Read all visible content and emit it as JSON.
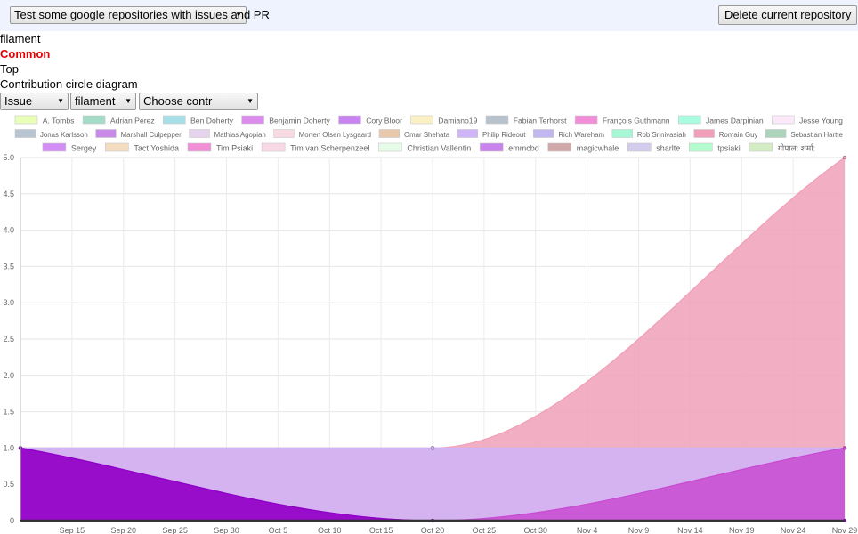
{
  "header": {
    "repo_select": "Test some google repositories with issues and PR",
    "delete_button": "Delete current repository"
  },
  "info": {
    "repo_name": "filament",
    "mode": "Common",
    "section": "Top",
    "diagram_title": "Contribution circle diagram"
  },
  "filters": {
    "type": "Issue",
    "repo": "filament",
    "contributor": "Choose contr"
  },
  "chart_data": {
    "type": "area",
    "x": [
      "Sep 10",
      "Sep 15",
      "Sep 20",
      "Sep 25",
      "Sep 30",
      "Oct 5",
      "Oct 10",
      "Oct 15",
      "Oct 20",
      "Oct 25",
      "Oct 30",
      "Nov 4",
      "Nov 9",
      "Nov 14",
      "Nov 19",
      "Nov 24",
      "Nov 29"
    ],
    "x_tick_labels": [
      "Sep 15",
      "Sep 20",
      "Sep 25",
      "Sep 30",
      "Oct 5",
      "Oct 10",
      "Oct 15",
      "Oct 20",
      "Oct 25",
      "Oct 30",
      "Nov 4",
      "Nov 9",
      "Nov 14",
      "Nov 19",
      "Nov 24",
      "Nov 29"
    ],
    "ylim": [
      0,
      5
    ],
    "y_ticks": [
      "0",
      "0.5",
      "1.0",
      "1.5",
      "2.0",
      "2.5",
      "3.0",
      "3.5",
      "4.0",
      "4.5",
      "5.0"
    ],
    "grid": true,
    "legend_position": "top",
    "legend": [
      {
        "name": "A. Tombs",
        "color": "#e9ffb8"
      },
      {
        "name": "Adrian Perez",
        "color": "#a4dcc7"
      },
      {
        "name": "Ben Doherty",
        "color": "#a8dfe6"
      },
      {
        "name": "Benjamin Doherty",
        "color": "#dc8cec"
      },
      {
        "name": "Cory Bloor",
        "color": "#c983f1"
      },
      {
        "name": "Damiano19",
        "color": "#fbf0c4"
      },
      {
        "name": "Fabian Terhorst",
        "color": "#b8c2cc"
      },
      {
        "name": "François Guthmann",
        "color": "#f28ed8"
      },
      {
        "name": "James Darpinian",
        "color": "#a8fcdf"
      },
      {
        "name": "Jesse Young",
        "color": "#fbe8f8"
      },
      {
        "name": "Jonas Karlsson",
        "color": "#b9c4d2"
      },
      {
        "name": "Marshall Culpepper",
        "color": "#c98ae8"
      },
      {
        "name": "Mathias Agopian",
        "color": "#e6d4ee"
      },
      {
        "name": "Morten Olsen Lysgaard",
        "color": "#f8dbe2"
      },
      {
        "name": "Omar Shehata",
        "color": "#e8c8aa"
      },
      {
        "name": "Philip Rideout",
        "color": "#d0b4f8"
      },
      {
        "name": "Rich Wareham",
        "color": "#c1b6ee"
      },
      {
        "name": "Rob Srinivasiah",
        "color": "#a8f7d4"
      },
      {
        "name": "Romain Guy",
        "color": "#f0a0b8"
      },
      {
        "name": "Sebastian Hartte",
        "color": "#acd4bb"
      },
      {
        "name": "Sergey",
        "color": "#d28ef4"
      },
      {
        "name": "Tact Yoshida",
        "color": "#f4dcc0"
      },
      {
        "name": "Tim Psiaki",
        "color": "#f08ed6"
      },
      {
        "name": "Tim van Scherpenzeel",
        "color": "#f8d8e4"
      },
      {
        "name": "Christian Vallentin",
        "color": "#e6fce8"
      },
      {
        "name": "emmcbd",
        "color": "#c884ec"
      },
      {
        "name": "magicwhale",
        "color": "#d0a8aa"
      },
      {
        "name": "sharlte",
        "color": "#d4ccec"
      },
      {
        "name": "tpsiaki",
        "color": "#b4fcd0"
      },
      {
        "name": "गोपाल: शर्मा:",
        "color": "#d4ecc4"
      }
    ],
    "series": [
      {
        "color": "#f0a0b8",
        "values": [
          1,
          null,
          null,
          null,
          null,
          null,
          null,
          null,
          1,
          null,
          null,
          null,
          null,
          null,
          null,
          null,
          5
        ]
      },
      {
        "color": "#d0b4f8",
        "values": [
          1,
          null,
          null,
          null,
          null,
          null,
          null,
          null,
          1,
          null,
          null,
          null,
          null,
          null,
          null,
          null,
          1
        ]
      },
      {
        "color": "#c84ad0",
        "values": [
          1,
          null,
          null,
          null,
          null,
          null,
          null,
          null,
          0,
          null,
          null,
          null,
          null,
          null,
          null,
          null,
          1
        ]
      },
      {
        "color": "#8e00c8",
        "values": [
          1,
          null,
          null,
          null,
          null,
          null,
          null,
          null,
          0,
          null,
          null,
          null,
          null,
          null,
          null,
          null,
          0
        ]
      }
    ]
  }
}
